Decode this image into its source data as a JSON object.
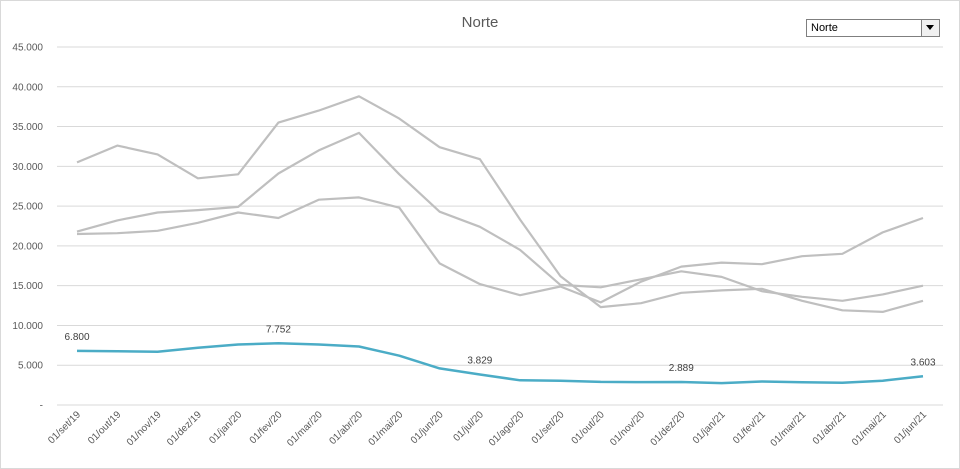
{
  "dropdown": {
    "value": "Norte"
  },
  "chart_data": {
    "type": "line",
    "title": "Norte",
    "xlabel": "",
    "ylabel": "",
    "ylim": [
      0,
      45000
    ],
    "y_ticks": [
      0,
      5000,
      10000,
      15000,
      20000,
      25000,
      30000,
      35000,
      40000,
      45000
    ],
    "y_tick_labels": [
      "-",
      "5.000",
      "10.000",
      "15.000",
      "20.000",
      "25.000",
      "30.000",
      "35.000",
      "40.000",
      "45.000"
    ],
    "grid": true,
    "categories": [
      "01/set/19",
      "01/out/19",
      "01/nov/19",
      "01/dez/19",
      "01/jan/20",
      "01/fev/20",
      "01/mar/20",
      "01/abr/20",
      "01/mai/20",
      "01/jun/20",
      "01/jul/20",
      "01/ago/20",
      "01/set/20",
      "01/out/20",
      "01/nov/20",
      "01/dez/20",
      "01/jan/21",
      "01/fev/21",
      "01/mar/21",
      "01/abr/21",
      "01/mai/21",
      "01/jun/21"
    ],
    "series": [
      {
        "color": "#bfbfbf",
        "values": [
          30500,
          32600,
          31500,
          28500,
          29000,
          35500,
          37000,
          38800,
          36000,
          32400,
          30900,
          23300,
          16200,
          12300,
          12800,
          14100,
          14400,
          14600,
          13100,
          11900,
          11700,
          13100
        ]
      },
      {
        "color": "#bfbfbf",
        "values": [
          21800,
          23200,
          24200,
          24500,
          24900,
          29100,
          32000,
          34200,
          29000,
          24300,
          22400,
          19500,
          15100,
          14800,
          15800,
          16800,
          16100,
          14300,
          13600,
          13100,
          13900,
          15000
        ]
      },
      {
        "color": "#bfbfbf",
        "values": [
          21500,
          21600,
          21900,
          22900,
          24200,
          23500,
          25800,
          26100,
          24800,
          17800,
          15200,
          13800,
          14900,
          12900,
          15500,
          17400,
          17900,
          17700,
          18700,
          19000,
          21700,
          23500
        ]
      },
      {
        "color": "#4bacc6",
        "values": [
          6800,
          6750,
          6700,
          7200,
          7600,
          7752,
          7600,
          7350,
          6200,
          4600,
          3829,
          3100,
          3050,
          2900,
          2880,
          2889,
          2750,
          2950,
          2850,
          2800,
          3050,
          3603
        ]
      }
    ],
    "data_labels": [
      {
        "series": 3,
        "index": 0,
        "text": "6.800"
      },
      {
        "series": 3,
        "index": 5,
        "text": "7.752"
      },
      {
        "series": 3,
        "index": 10,
        "text": "3.829"
      },
      {
        "series": 3,
        "index": 15,
        "text": "2.889"
      },
      {
        "series": 3,
        "index": 21,
        "text": "3.603"
      }
    ]
  }
}
